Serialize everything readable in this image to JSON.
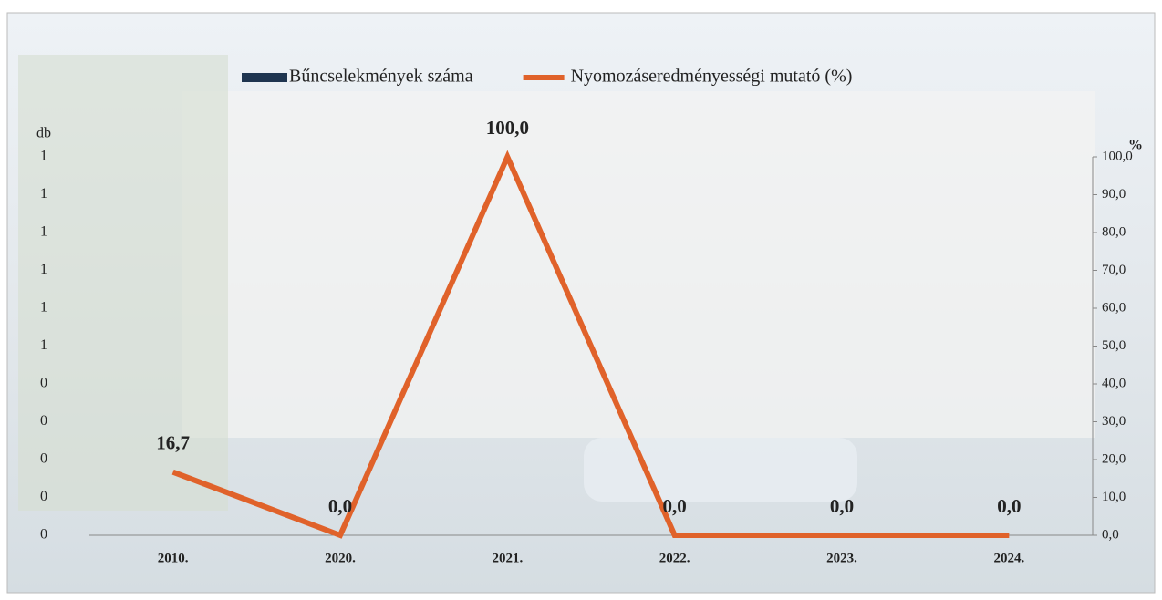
{
  "chart_data": {
    "type": "bar-line",
    "categories": [
      "2010.",
      "2020.",
      "2021.",
      "2022.",
      "2023.",
      "2024."
    ],
    "series": [
      {
        "name": "Bűncselekmények száma",
        "color": "#1f3550",
        "values": [
          0,
          0,
          0,
          0,
          0,
          0
        ]
      },
      {
        "name": "Nyomozáseredményességi mutató (%)",
        "color": "#e0622a",
        "axis": "y2",
        "type": "line",
        "values": [
          16.7,
          0,
          100,
          0,
          0,
          0
        ],
        "value_labels": [
          "16,7",
          "0,0",
          "100,0",
          "0,0",
          "0,0",
          "0,0"
        ]
      }
    ],
    "ylabel": "db",
    "y2label": "%",
    "ylim": [
      0,
      1
    ],
    "yticks": [
      0,
      {
        "value": 0.1,
        "label": "0"
      },
      {
        "value": 0.2,
        "label": "0"
      },
      {
        "value": 0.3,
        "label": "0"
      },
      {
        "value": 0.4,
        "label": "0"
      },
      {
        "value": 0.5,
        "label": "1"
      },
      {
        "value": 0.6,
        "label": "1"
      },
      {
        "value": 0.7,
        "label": "1"
      },
      {
        "value": 0.8,
        "label": "1"
      },
      {
        "value": 0.9,
        "label": "1"
      },
      1
    ],
    "y2lim": [
      0,
      100
    ],
    "y2ticks": [
      {
        "value": 0,
        "label": "0,0"
      },
      {
        "value": 10,
        "label": "10,0"
      },
      {
        "value": 20,
        "label": "20,0"
      },
      {
        "value": 30,
        "label": "30,0"
      },
      {
        "value": 40,
        "label": "40,0"
      },
      {
        "value": 50,
        "label": "50,0"
      },
      {
        "value": 60,
        "label": "60,0"
      },
      {
        "value": 70,
        "label": "70,0"
      },
      {
        "value": 80,
        "label": "80,0"
      },
      {
        "value": 90,
        "label": "90,0"
      },
      {
        "value": 100,
        "label": "100,0"
      }
    ],
    "legend": "top"
  }
}
